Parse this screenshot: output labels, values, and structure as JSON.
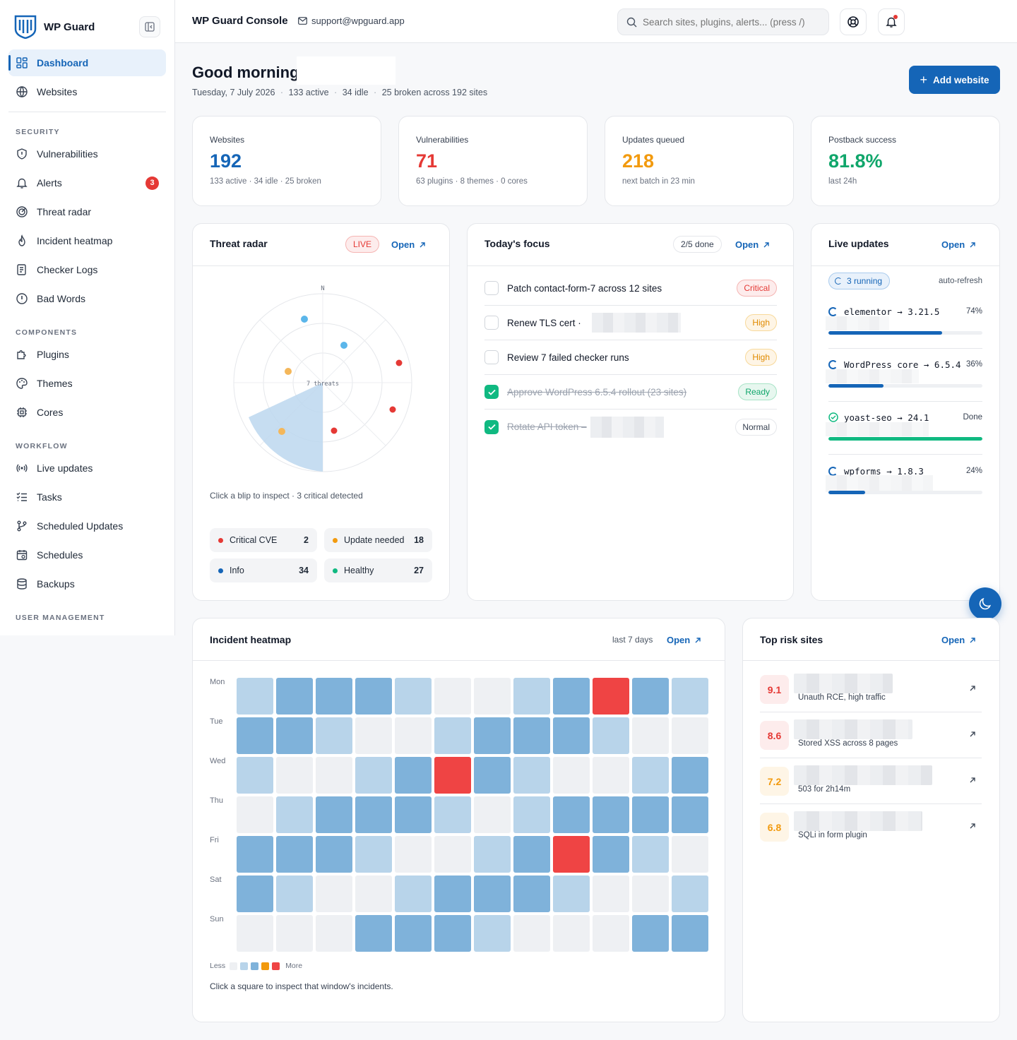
{
  "app": {
    "name": "WP Guard",
    "console_title": "WP Guard Console",
    "support_email": "support@wpguard.app"
  },
  "search": {
    "placeholder": "Search sites, plugins, alerts... (press /)"
  },
  "sidebar": {
    "top": [
      {
        "label": "Dashboard",
        "icon": "dashboard-icon",
        "active": true
      },
      {
        "label": "Websites",
        "icon": "globe-icon"
      }
    ],
    "sections": [
      {
        "title": "SECURITY",
        "items": [
          {
            "label": "Vulnerabilities",
            "icon": "shield-icon"
          },
          {
            "label": "Alerts",
            "icon": "bell-icon",
            "badge": "3"
          },
          {
            "label": "Threat radar",
            "icon": "radar-icon"
          },
          {
            "label": "Incident heatmap",
            "icon": "flame-icon"
          },
          {
            "label": "Checker Logs",
            "icon": "logs-icon"
          },
          {
            "label": "Bad Words",
            "icon": "alert-circle-icon"
          }
        ]
      },
      {
        "title": "COMPONENTS",
        "items": [
          {
            "label": "Plugins",
            "icon": "puzzle-icon"
          },
          {
            "label": "Themes",
            "icon": "palette-icon"
          },
          {
            "label": "Cores",
            "icon": "cpu-icon"
          }
        ]
      },
      {
        "title": "WORKFLOW",
        "items": [
          {
            "label": "Live updates",
            "icon": "broadcast-icon"
          },
          {
            "label": "Tasks",
            "icon": "checklist-icon"
          },
          {
            "label": "Scheduled Updates",
            "icon": "git-branch-icon"
          },
          {
            "label": "Schedules",
            "icon": "calendar-icon"
          },
          {
            "label": "Backups",
            "icon": "database-icon"
          }
        ]
      },
      {
        "title": "USER MANAGEMENT",
        "items": []
      }
    ]
  },
  "greeting": {
    "title": "Good morning,",
    "date": "Tuesday, 7 July 2026",
    "active": "133 active",
    "idle": "34 idle",
    "broken": "25 broken across 192 sites",
    "add_button": "Add website"
  },
  "stats": [
    {
      "label": "Websites",
      "value": "192",
      "sub": "133 active · 34 idle · 25 broken",
      "color": "#1565b7"
    },
    {
      "label": "Vulnerabilities",
      "value": "71",
      "sub": "63 plugins · 8 themes · 0 cores",
      "color": "#e53935"
    },
    {
      "label": "Updates queued",
      "value": "218",
      "sub": "next batch in 23 min",
      "color": "#f29a0e"
    },
    {
      "label": "Postback success",
      "value": "81.8%",
      "sub": "last 24h",
      "color": "#10a66b"
    }
  ],
  "threat_radar": {
    "title": "Threat radar",
    "live": "LIVE",
    "open": "Open",
    "north": "N",
    "center_label": "7 threats",
    "hint": "Click a blip to inspect · 3 critical detected",
    "legend": [
      {
        "label": "Critical CVE",
        "count": "2",
        "color": "#e53935"
      },
      {
        "label": "Update needed",
        "count": "18",
        "color": "#f29a0e"
      },
      {
        "label": "Info",
        "count": "34",
        "color": "#1565b7"
      },
      {
        "label": "Healthy",
        "count": "27",
        "color": "#10b981"
      }
    ]
  },
  "focus": {
    "title": "Today's focus",
    "progress": "2/5 done",
    "open": "Open",
    "tasks": [
      {
        "text": "Patch contact-form-7 across 12 sites",
        "tag": "Critical",
        "done": false
      },
      {
        "text": "Renew TLS cert ·",
        "tag": "High",
        "done": false
      },
      {
        "text": "Review 7 failed checker runs",
        "tag": "High",
        "done": false
      },
      {
        "text": "Approve WordPress 6.5.4 rollout (23 sites)",
        "tag": "Ready",
        "done": true
      },
      {
        "text": "Rotate API token – ",
        "tag": "Normal",
        "done": true
      }
    ]
  },
  "live_updates": {
    "title": "Live updates",
    "open": "Open",
    "running": "3 running",
    "refresh": "auto-refresh",
    "items": [
      {
        "name": "elementor → 3.21.5",
        "status": "74%",
        "progress": 0.74,
        "state": "running"
      },
      {
        "name": "WordPress core → 6.5.4",
        "status": "36%",
        "progress": 0.36,
        "state": "running"
      },
      {
        "name": "yoast-seo → 24.1",
        "status": "Done",
        "progress": 1.0,
        "state": "done"
      },
      {
        "name": "wpforms → 1.8.3",
        "status": "24%",
        "progress": 0.24,
        "state": "running"
      }
    ]
  },
  "heatmap": {
    "title": "Incident heatmap",
    "range": "last 7 days",
    "open": "Open",
    "days": [
      "Mon",
      "Tue",
      "Wed",
      "Thu",
      "Fri",
      "Sat",
      "Sun"
    ],
    "levels": [
      [
        1,
        2,
        2,
        2,
        1,
        0,
        0,
        1,
        2,
        4,
        2,
        1
      ],
      [
        2,
        2,
        1,
        0,
        0,
        1,
        2,
        2,
        2,
        1,
        0,
        0
      ],
      [
        1,
        0,
        0,
        1,
        2,
        4,
        2,
        1,
        0,
        0,
        1,
        2
      ],
      [
        0,
        1,
        2,
        2,
        2,
        1,
        0,
        1,
        2,
        2,
        2,
        2
      ],
      [
        2,
        2,
        2,
        1,
        0,
        0,
        1,
        2,
        4,
        2,
        1,
        0
      ],
      [
        2,
        1,
        0,
        0,
        1,
        2,
        2,
        2,
        1,
        0,
        0,
        1
      ],
      [
        0,
        0,
        0,
        2,
        2,
        2,
        1,
        0,
        0,
        0,
        2,
        2
      ]
    ],
    "legend_less": "Less",
    "legend_more": "More",
    "hint": "Click a square to inspect that window's incidents."
  },
  "top_risk": {
    "title": "Top risk sites",
    "open": "Open",
    "items": [
      {
        "score": "9.1",
        "desc": "Unauth RCE, high traffic",
        "color": "#e53935",
        "bg": "#fdecec"
      },
      {
        "score": "8.6",
        "desc": "Stored XSS across 8 pages",
        "color": "#e53935",
        "bg": "#fdecec"
      },
      {
        "score": "7.2",
        "desc": "503 for 2h14m",
        "color": "#f29a0e",
        "bg": "#fef5e6"
      },
      {
        "score": "6.8",
        "desc": "SQLi in form plugin",
        "color": "#f29a0e",
        "bg": "#fef5e6"
      }
    ]
  }
}
